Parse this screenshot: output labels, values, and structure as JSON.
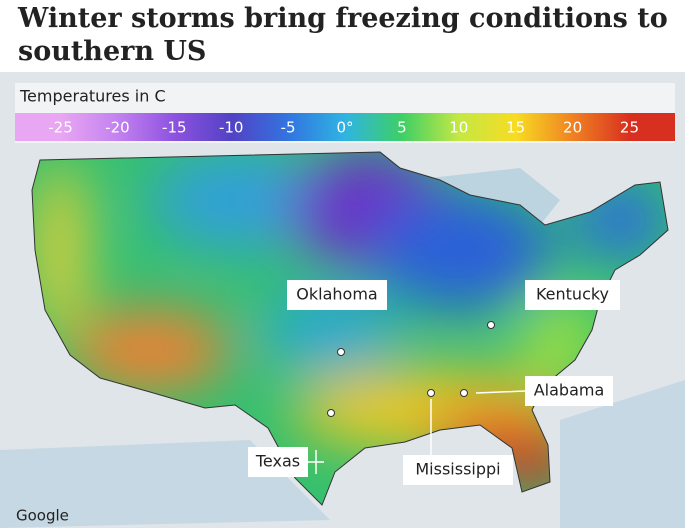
{
  "header": {
    "title": "Winter storms bring freezing conditions to southern US"
  },
  "legend": {
    "title": "Temperatures in C",
    "xlim": [
      -29,
      29
    ],
    "ticks": [
      -25,
      -20,
      -15,
      -10,
      -5,
      {
        "value": 0,
        "label": "0°"
      },
      5,
      10,
      15,
      20,
      25
    ],
    "colors": [
      "#e9a6f2",
      "#c382f0",
      "#8d52e0",
      "#5242c4",
      "#3274e0",
      "#2fb4e2",
      "#3ecf66",
      "#c4e844",
      "#f7dc22",
      "#f08222",
      "#d83020"
    ]
  },
  "labels": [
    {
      "text": "Oklahoma"
    },
    {
      "text": "Kentucky"
    },
    {
      "text": "Alabama"
    },
    {
      "text": "Texas"
    },
    {
      "text": "Mississippi"
    }
  ],
  "credit": "Google"
}
